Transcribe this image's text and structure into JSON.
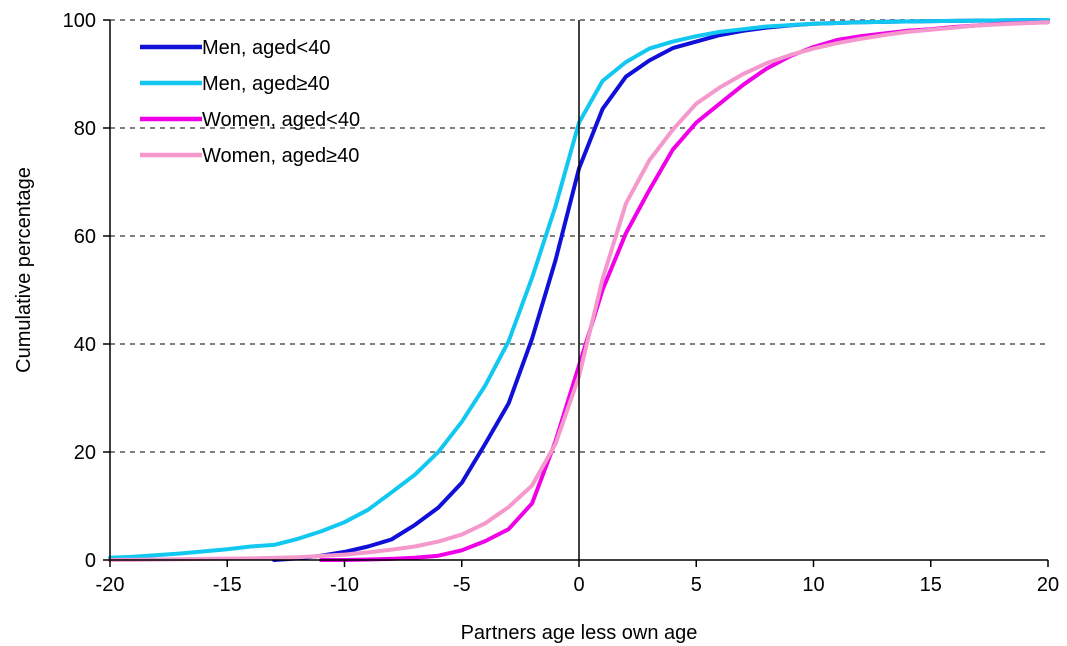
{
  "chart_data": {
    "type": "line",
    "xlabel": "Partners age less own age",
    "ylabel": "Cumulative percentage",
    "xlim": [
      -20,
      20
    ],
    "ylim": [
      0,
      100
    ],
    "xticks": [
      "-20",
      "-15",
      "-10",
      "-5",
      "0",
      "5",
      "10",
      "15",
      "20"
    ],
    "yticks": [
      "0",
      "20",
      "40",
      "60",
      "80",
      "100"
    ],
    "grid": "horizontal dashed",
    "legend_position": "top-left",
    "series": [
      {
        "name": "Men, aged<40",
        "color": "#1010D8",
        "x": [
          -13,
          -12,
          -11,
          -10,
          -9,
          -8,
          -7,
          -6,
          -5,
          -4,
          -3,
          -2,
          -1,
          0,
          1,
          2,
          3,
          4,
          5,
          6,
          7,
          8,
          9,
          10,
          12,
          15,
          20
        ],
        "y": [
          0,
          0.3,
          0.8,
          1.5,
          2.5,
          3.8,
          6.5,
          9.7,
          14.3,
          21.5,
          29,
          41,
          55.5,
          72.5,
          83.5,
          89.5,
          92.5,
          94.8,
          96,
          97.2,
          98,
          98.6,
          99,
          99.3,
          99.6,
          99.8,
          100
        ]
      },
      {
        "name": "Men, aged≥40",
        "color": "#12C8F0",
        "x": [
          -20,
          -19,
          -18,
          -17,
          -16,
          -15,
          -14,
          -13,
          -12,
          -11,
          -10,
          -9,
          -8,
          -7,
          -6,
          -5,
          -4,
          -3,
          -2,
          -1,
          0,
          1,
          2,
          3,
          4,
          5,
          6,
          7,
          8,
          10,
          12,
          15,
          20
        ],
        "y": [
          0.4,
          0.6,
          0.9,
          1.2,
          1.6,
          2,
          2.5,
          2.8,
          3.9,
          5.3,
          7,
          9.3,
          12.5,
          15.8,
          20,
          25.6,
          32.3,
          40.5,
          52.3,
          65.5,
          81,
          88.7,
          92.2,
          94.7,
          96,
          97,
          97.8,
          98.3,
          98.8,
          99.3,
          99.6,
          99.8,
          100
        ]
      },
      {
        "name": "Women, aged<40",
        "color": "#F000E6",
        "x": [
          -11,
          -10,
          -9,
          -8,
          -7,
          -6,
          -5,
          -4,
          -3,
          -2,
          -1,
          0,
          1,
          2,
          3,
          4,
          5,
          6,
          7,
          8,
          9,
          10,
          11,
          12,
          13,
          14,
          15,
          16,
          17,
          18,
          20
        ],
        "y": [
          0,
          0,
          0.1,
          0.2,
          0.4,
          0.8,
          1.8,
          3.5,
          5.7,
          10.5,
          22,
          36,
          50,
          60.5,
          68.5,
          76,
          81,
          84.5,
          88,
          91,
          93.3,
          95,
          96.3,
          97,
          97.5,
          98,
          98.3,
          98.7,
          99,
          99.3,
          99.6
        ]
      },
      {
        "name": "Women, aged≥40",
        "color": "#F598CC",
        "x": [
          -20,
          -18,
          -16,
          -14,
          -12,
          -10,
          -9,
          -8,
          -7,
          -6,
          -5,
          -4,
          -3,
          -2,
          -1,
          0,
          1,
          2,
          3,
          4,
          5,
          6,
          7,
          8,
          9,
          10,
          11,
          12,
          13,
          14,
          15,
          16,
          17,
          18,
          19,
          20
        ],
        "y": [
          0,
          0.1,
          0.2,
          0.3,
          0.5,
          1,
          1.4,
          1.9,
          2.5,
          3.4,
          4.7,
          6.8,
          9.8,
          13.8,
          21.5,
          34,
          52,
          66,
          74,
          79.7,
          84.5,
          87.5,
          90,
          92,
          93.5,
          94.7,
          95.7,
          96.5,
          97.2,
          97.8,
          98.2,
          98.6,
          99,
          99.2,
          99.4,
          99.6
        ]
      }
    ]
  }
}
